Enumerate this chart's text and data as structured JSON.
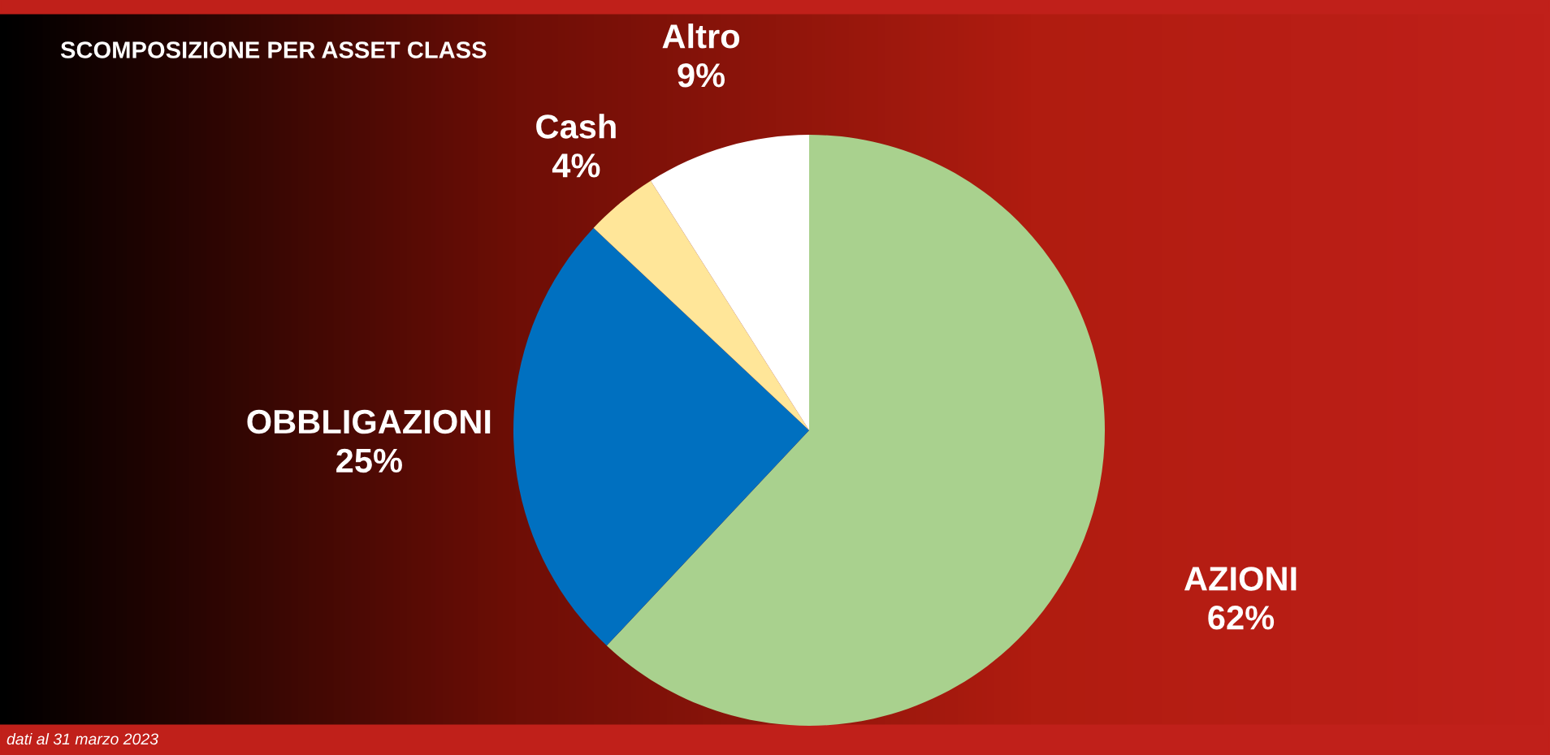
{
  "chart_data": {
    "type": "pie",
    "title": "SCOMPOSIZIONE PER ASSET CLASS",
    "categories": [
      "AZIONI",
      "OBBLIGAZIONI",
      "Cash",
      "Altro"
    ],
    "values": [
      62,
      25,
      4,
      9
    ],
    "colors": [
      "#a9d18e",
      "#0070c0",
      "#ffe699",
      "#ffffff"
    ],
    "value_labels": [
      "62%",
      "25%",
      "4%",
      "9%"
    ],
    "annotations": [
      "dati al 31 marzo 2023"
    ]
  }
}
